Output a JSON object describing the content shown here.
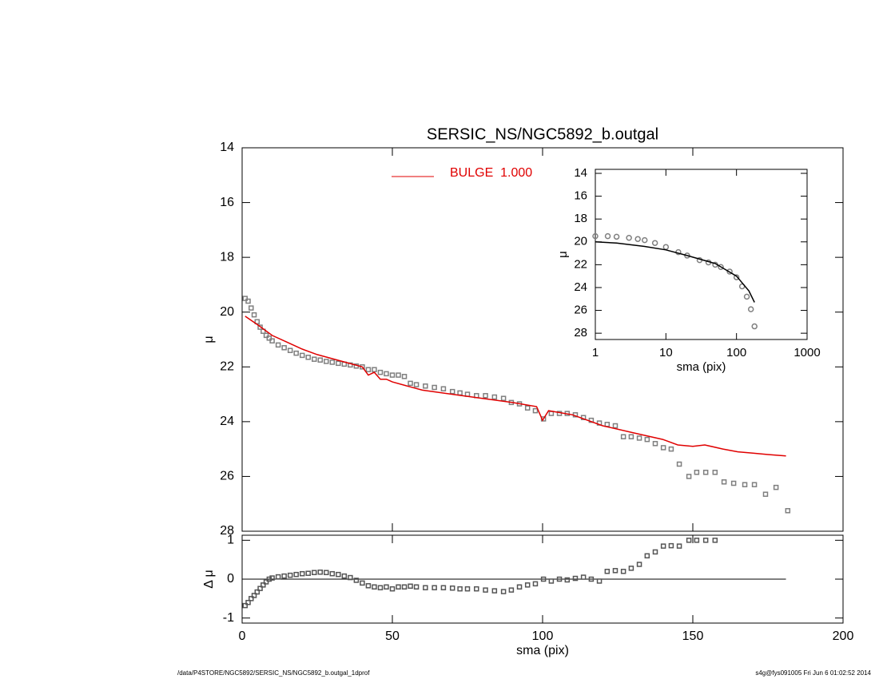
{
  "chart_data": [
    {
      "type": "scatter",
      "title": "SERSIC_NS/NGC5892_b.outgal",
      "ylabel": "μ",
      "xlim": [
        0,
        200
      ],
      "ylim": [
        28,
        14
      ],
      "yticks": [
        14,
        16,
        18,
        20,
        22,
        24,
        26,
        28
      ],
      "legend": "top",
      "series": [
        {
          "color": "#7f7f7f",
          "mode": "markers",
          "marker": "square",
          "x": [
            1,
            2,
            3,
            4,
            5,
            6,
            7,
            8,
            9,
            10,
            12,
            14,
            16,
            18,
            20,
            22,
            24,
            26,
            28,
            30,
            32,
            34,
            36,
            38,
            40,
            42,
            44,
            46,
            48,
            50,
            52,
            54,
            56,
            58,
            61,
            64,
            67,
            70,
            72.5,
            75,
            78,
            81,
            84,
            87,
            89.6,
            92.3,
            95,
            97.6,
            100.3,
            102.9,
            105.6,
            108.2,
            110.9,
            113.6,
            116.2,
            118.9,
            121.5,
            124.2,
            126.9,
            129.5,
            132.2,
            134.8,
            137.5,
            140.2,
            142.8,
            145.5,
            148.7,
            151.3,
            154.3,
            157.4,
            160.4,
            163.6,
            167.3,
            170.5,
            174.2,
            177.7,
            181.6
          ],
          "values": [
            19.5,
            19.6,
            19.85,
            20.1,
            20.35,
            20.55,
            20.7,
            20.85,
            20.95,
            21.05,
            21.2,
            21.3,
            21.4,
            21.5,
            21.58,
            21.65,
            21.72,
            21.75,
            21.8,
            21.83,
            21.87,
            21.9,
            21.93,
            21.97,
            22.0,
            22.1,
            22.1,
            22.2,
            22.25,
            22.3,
            22.3,
            22.35,
            22.6,
            22.65,
            22.7,
            22.75,
            22.8,
            22.9,
            22.95,
            23.0,
            23.05,
            23.05,
            23.1,
            23.15,
            23.3,
            23.35,
            23.5,
            23.6,
            23.9,
            23.7,
            23.7,
            23.7,
            23.75,
            23.85,
            23.95,
            24.05,
            24.1,
            24.15,
            24.55,
            24.55,
            24.6,
            24.65,
            24.8,
            24.95,
            25.0,
            25.55,
            26.0,
            25.85,
            25.85,
            25.85,
            26.2,
            26.25,
            26.3,
            26.3,
            26.65,
            26.4,
            27.25
          ]
        },
        {
          "name": "BULGE  1.000",
          "color": "#e00000",
          "mode": "lines",
          "x": [
            1,
            5,
            10,
            15,
            20,
            25,
            30,
            35,
            40,
            42,
            44,
            46,
            48,
            50,
            55,
            60,
            70,
            80,
            90,
            98,
            100,
            102,
            110,
            120,
            130,
            140,
            145,
            150,
            154,
            160,
            165,
            170,
            175,
            181
          ],
          "values": [
            20.15,
            20.45,
            20.85,
            21.1,
            21.35,
            21.55,
            21.7,
            21.85,
            22.0,
            22.3,
            22.2,
            22.45,
            22.45,
            22.55,
            22.7,
            22.85,
            23.0,
            23.15,
            23.3,
            23.45,
            23.95,
            23.6,
            23.75,
            24.15,
            24.4,
            24.65,
            24.85,
            24.9,
            24.85,
            25.0,
            25.1,
            25.15,
            25.2,
            25.25
          ]
        }
      ]
    },
    {
      "type": "scatter",
      "xlabel": "sma (pix)",
      "ylabel": "Δ μ",
      "xlim": [
        0,
        200
      ],
      "xticks": [
        0,
        50,
        100,
        150,
        200
      ],
      "ylim": [
        -1.13,
        1.13
      ],
      "yticks": [
        -1,
        0,
        1
      ],
      "series": [
        {
          "color": "#555555",
          "mode": "markers",
          "marker": "square",
          "x": [
            1,
            2,
            3,
            4,
            5,
            6,
            7,
            8,
            9,
            10,
            12,
            14,
            16,
            18,
            20,
            22,
            24,
            26,
            28,
            30,
            32,
            34,
            36,
            38,
            40,
            42,
            44,
            46,
            48,
            50,
            52,
            54,
            56,
            58,
            61,
            64,
            67,
            70,
            72.5,
            75,
            78,
            81,
            84,
            87,
            89.6,
            92.3,
            95,
            97.6,
            100.3,
            102.9,
            105.6,
            108.2,
            110.9,
            113.6,
            116.2,
            118.9,
            121.5,
            124.2,
            126.9,
            129.5,
            132.2,
            134.8,
            137.5,
            140.2,
            142.8,
            145.5,
            148.7,
            151.3,
            154.3,
            157.4
          ],
          "values": [
            -0.68,
            -0.6,
            -0.5,
            -0.42,
            -0.33,
            -0.24,
            -0.15,
            -0.07,
            0.0,
            0.03,
            0.06,
            0.08,
            0.1,
            0.12,
            0.14,
            0.15,
            0.17,
            0.18,
            0.17,
            0.14,
            0.12,
            0.08,
            0.04,
            -0.03,
            -0.1,
            -0.17,
            -0.2,
            -0.22,
            -0.2,
            -0.25,
            -0.2,
            -0.2,
            -0.18,
            -0.2,
            -0.22,
            -0.22,
            -0.22,
            -0.23,
            -0.25,
            -0.25,
            -0.25,
            -0.28,
            -0.3,
            -0.32,
            -0.28,
            -0.2,
            -0.15,
            -0.12,
            0.0,
            -0.05,
            0.0,
            -0.02,
            0.02,
            0.05,
            0.0,
            -0.05,
            0.2,
            0.22,
            0.2,
            0.28,
            0.38,
            0.6,
            0.7,
            0.85,
            0.86,
            0.85,
            1.0,
            1.0,
            1.0,
            1.0
          ]
        }
      ]
    },
    {
      "type": "scatter",
      "xlabel": "sma (pix)",
      "ylabel": "μ",
      "xlog": true,
      "xlim": [
        1,
        1000
      ],
      "xticks": [
        1,
        10,
        100,
        1000
      ],
      "ylim": [
        28.55,
        13.65
      ],
      "yticks": [
        14,
        16,
        18,
        20,
        22,
        24,
        26,
        28
      ],
      "series": [
        {
          "color": "#7f7f7f",
          "mode": "markers",
          "marker": "circle",
          "x": [
            1,
            1.5,
            2,
            3,
            4,
            5,
            7,
            10,
            15,
            20,
            30,
            40,
            50,
            60,
            80,
            100,
            120,
            140,
            160,
            180
          ],
          "values": [
            19.5,
            19.5,
            19.55,
            19.65,
            19.75,
            19.85,
            20.1,
            20.45,
            20.9,
            21.2,
            21.6,
            21.8,
            22.0,
            22.2,
            22.6,
            23.1,
            23.9,
            24.8,
            25.9,
            27.4
          ]
        },
        {
          "color": "#000000",
          "mode": "lines",
          "x": [
            1,
            2,
            5,
            10,
            20,
            50,
            100,
            150,
            180
          ],
          "values": [
            20.0,
            20.1,
            20.4,
            20.7,
            21.2,
            21.9,
            23.0,
            24.3,
            25.3
          ]
        }
      ]
    }
  ],
  "footer": {
    "left": "/data/P4STORE/NGC5892/SERSIC_NS/NGC5892_b.outgal_1dprof",
    "right": "s4g@fys091005  Fri Jun  6 01:02:52 2014"
  }
}
